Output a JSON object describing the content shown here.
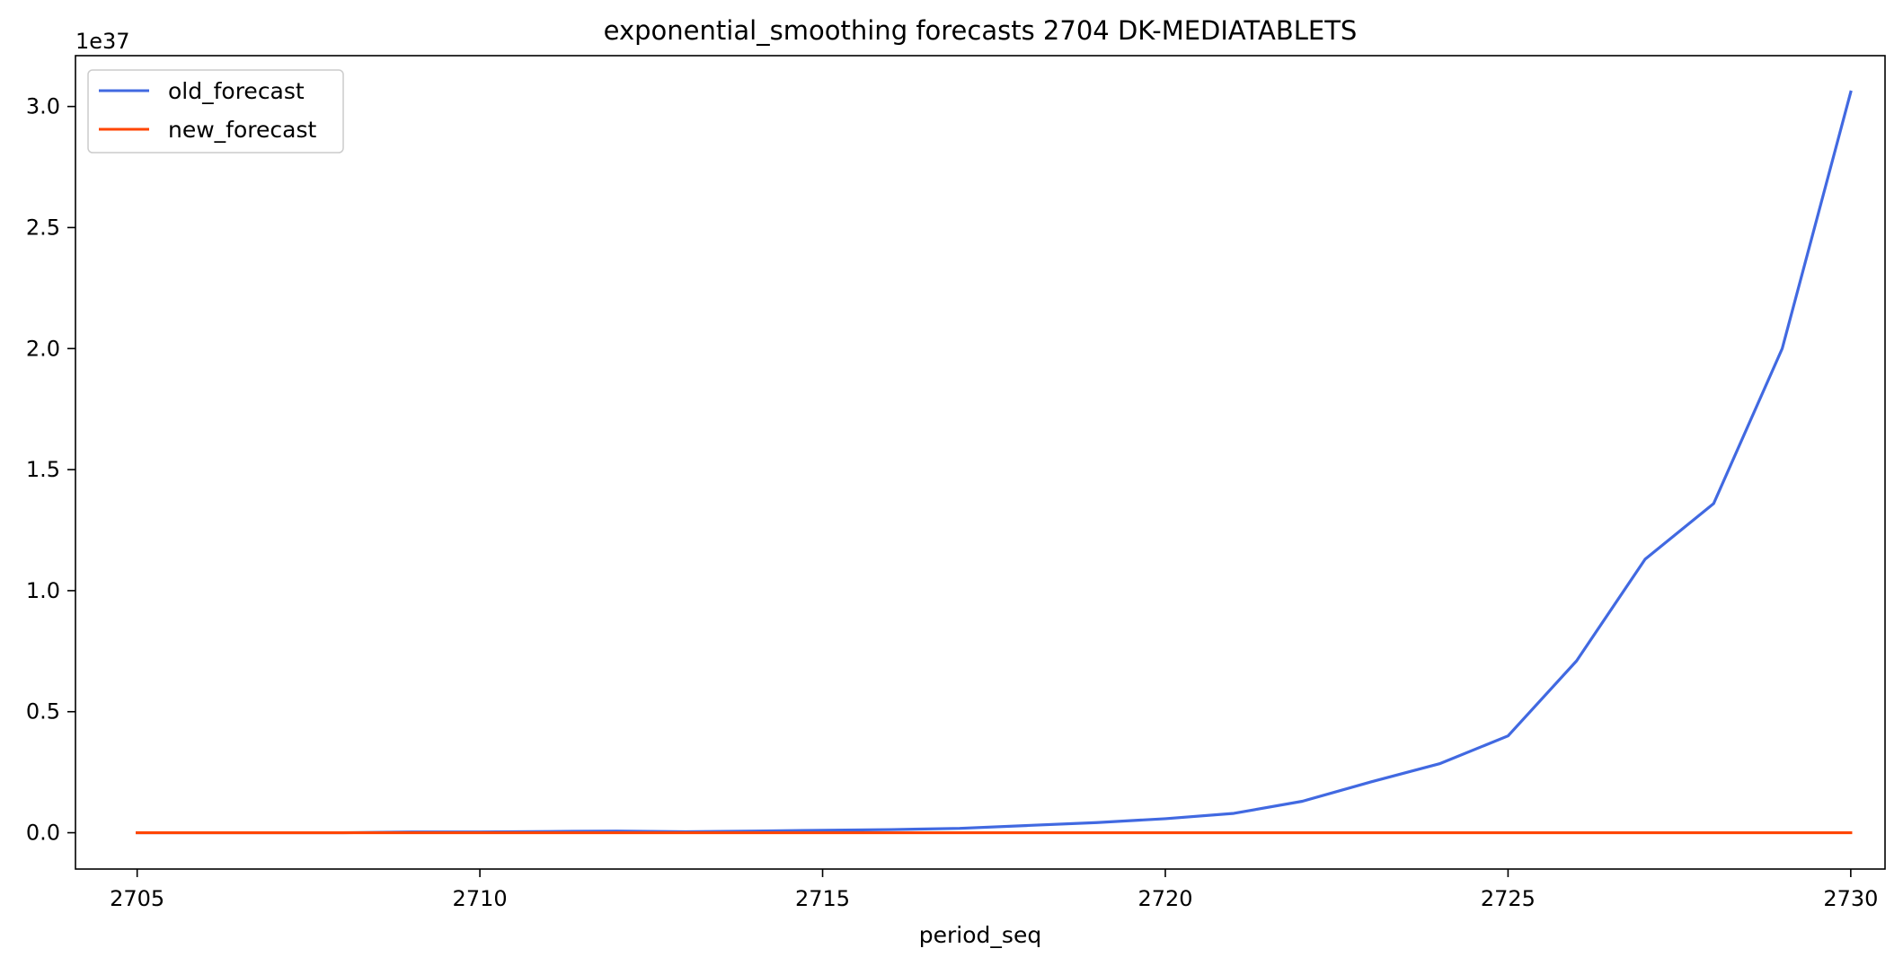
{
  "chart_data": {
    "type": "line",
    "title": "exponential_smoothing forecasts 2704 DK-MEDIATABLETS",
    "xlabel": "period_seq",
    "ylabel": "",
    "y_offset_text": "1e37",
    "xlim": [
      2704.1,
      2730.5
    ],
    "ylim": [
      -0.15,
      3.21
    ],
    "x_ticks": [
      2705,
      2710,
      2715,
      2720,
      2725,
      2730
    ],
    "x_tick_labels": [
      "2705",
      "2710",
      "2715",
      "2720",
      "2725",
      "2730"
    ],
    "y_ticks": [
      0.0,
      0.5,
      1.0,
      1.5,
      2.0,
      2.5,
      3.0
    ],
    "y_tick_labels": [
      "0.0",
      "0.5",
      "1.0",
      "1.5",
      "2.0",
      "2.5",
      "3.0"
    ],
    "grid": false,
    "legend_position": "upper-left",
    "x": [
      2705,
      2706,
      2707,
      2708,
      2709,
      2710,
      2711,
      2712,
      2713,
      2714,
      2715,
      2716,
      2717,
      2718,
      2719,
      2720,
      2721,
      2722,
      2723,
      2724,
      2725,
      2726,
      2727,
      2728,
      2729,
      2730
    ],
    "series": [
      {
        "name": "old_forecast",
        "color": "#4169e1",
        "values": [
          0.0,
          0.0,
          0.0,
          0.0,
          0.003,
          0.003,
          0.005,
          0.007,
          0.004,
          0.007,
          0.01,
          0.013,
          0.018,
          0.03,
          0.042,
          0.058,
          0.08,
          0.13,
          0.21,
          0.285,
          0.4,
          0.71,
          1.13,
          1.36,
          2.0,
          3.06
        ]
      },
      {
        "name": "new_forecast",
        "color": "#ff4500",
        "values": [
          0,
          0,
          0,
          0,
          0,
          0,
          0,
          0,
          0,
          0,
          0,
          0,
          0,
          0,
          0,
          0,
          0,
          0,
          0,
          0,
          0,
          0,
          0,
          0,
          0,
          0
        ]
      }
    ]
  }
}
